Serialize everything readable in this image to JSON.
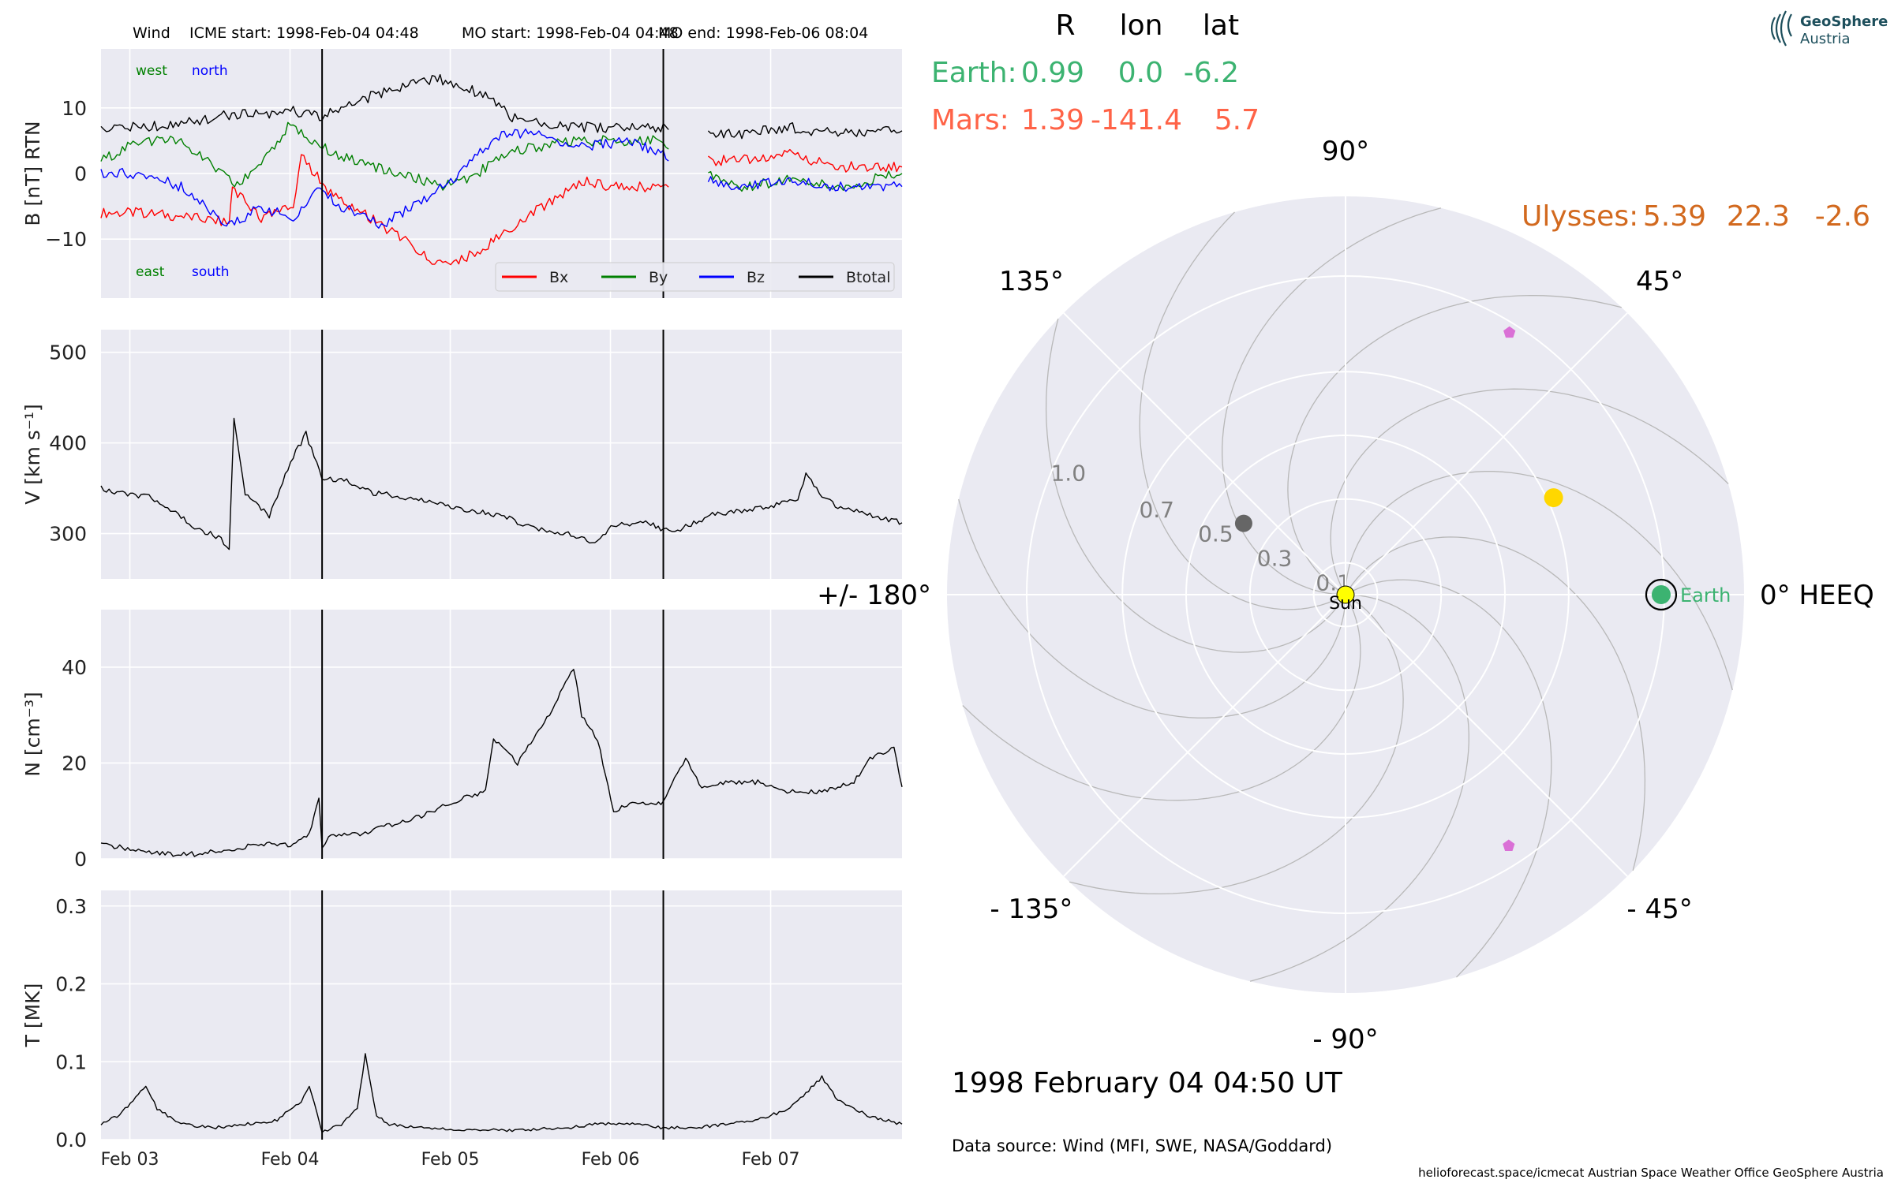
{
  "header": {
    "spacecraft": "Wind",
    "icme_start": "ICME start: 1998-Feb-04 04:48",
    "mo_start": "MO start: 1998-Feb-04 04:48",
    "mo_end": "MO end: 1998-Feb-06 08:04"
  },
  "logo": {
    "line1": "GeoSphere",
    "line2": "Austria",
    "icon": "geosphere-logo-icon"
  },
  "colors": {
    "panel_bg": "#eaeaf2",
    "grid": "#ffffff",
    "bx": "#ff0000",
    "by": "#008000",
    "bz": "#0000ff",
    "btotal": "#000000",
    "earth": "#3cb371",
    "mars": "#ff6347",
    "ulysses": "#d2691e",
    "sun": "#ffff00",
    "comet_like": "#666666",
    "planet_gold": "#ffd700",
    "pentagon": "#da70d6"
  },
  "footer": {
    "datetime": "1998 February 04  04:50 UT",
    "source": "Data source: Wind (MFI, SWE, NASA/Goddard)",
    "credits": "helioforecast.space/icmecat   Austrian Space Weather Office   GeoSphere Austria"
  },
  "position_table": {
    "headers": [
      "R",
      "lon",
      "lat"
    ],
    "rows": [
      {
        "label": "Earth:",
        "values": [
          "0.99",
          "0.0",
          "-6.2"
        ],
        "color": "#3cb371"
      },
      {
        "label": "Mars:",
        "values": [
          "1.39",
          "-141.4",
          "5.7"
        ],
        "color": "#ff6347"
      }
    ],
    "ulysses": {
      "label": "Ulysses:",
      "values": [
        "5.39",
        "22.3",
        "-2.6"
      ],
      "color": "#d2691e"
    }
  },
  "chart_data": [
    {
      "type": "line",
      "panel": "magnetic field",
      "ylabel": "B [nT] RTN",
      "ylim": [
        -19,
        19
      ],
      "yticks": [
        10,
        0,
        -10
      ],
      "ytick_labels": [
        "10",
        "0",
        "−10"
      ],
      "xlim": [
        0,
        5
      ],
      "x_ticks": [
        0.18,
        1.18,
        2.18,
        3.18,
        4.18
      ],
      "x_tick_labels": [
        "Feb 03",
        "Feb 04",
        "Feb 05",
        "Feb 06",
        "Feb 07"
      ],
      "x_start": "1998-02-02 19:40",
      "vlines": [
        1.38,
        3.51
      ],
      "corner_labels": {
        "top_left": "west",
        "top_right": "north",
        "bottom_left": "east",
        "bottom_right": "south"
      },
      "gap": [
        3.55,
        3.79
      ],
      "series": [
        {
          "name": "Bx",
          "color": "#ff0000",
          "x": [
            0,
            0.25,
            0.5,
            0.8,
            0.82,
            1.0,
            1.2,
            1.25,
            1.45,
            1.7,
            2.0,
            2.1,
            2.2,
            2.4,
            2.7,
            3.0,
            3.2,
            3.51,
            3.79,
            4.0,
            4.3,
            4.6,
            5.0
          ],
          "y": [
            -6,
            -6,
            -6.5,
            -7.5,
            -2,
            -7,
            -5,
            2.5,
            -3.5,
            -7,
            -12,
            -14,
            -14,
            -11,
            -6,
            -1,
            -2,
            -2,
            2,
            2,
            3,
            1,
            1
          ]
        },
        {
          "name": "By",
          "color": "#008000",
          "x": [
            0,
            0.25,
            0.5,
            0.85,
            1.0,
            1.2,
            1.25,
            1.45,
            1.7,
            2.0,
            2.1,
            2.3,
            2.5,
            2.7,
            3.0,
            3.3,
            3.51,
            3.79,
            4.0,
            4.3,
            4.6,
            5.0
          ],
          "y": [
            2,
            5,
            5,
            -2,
            2,
            8,
            6,
            3,
            1,
            -1,
            -2,
            -1,
            3,
            4,
            5,
            5,
            5,
            0,
            -2,
            -1,
            -2,
            0
          ]
        },
        {
          "name": "Bz",
          "color": "#0000ff",
          "x": [
            0,
            0.25,
            0.5,
            0.8,
            1.0,
            1.2,
            1.35,
            1.5,
            1.75,
            2.0,
            2.2,
            2.4,
            2.5,
            2.7,
            3.0,
            3.3,
            3.51,
            3.79,
            4.0,
            4.3,
            4.6,
            5.0
          ],
          "y": [
            0,
            0,
            -2,
            -8,
            -5,
            -7,
            -2,
            -5,
            -8,
            -4,
            -1,
            4,
            6,
            6,
            4,
            5,
            3,
            -1,
            -2,
            -1,
            -2,
            -2
          ]
        },
        {
          "name": "Btotal",
          "color": "#000000",
          "x": [
            0,
            0.25,
            0.5,
            0.8,
            1.0,
            1.2,
            1.25,
            1.38,
            1.6,
            1.9,
            2.1,
            2.4,
            2.6,
            3.0,
            3.3,
            3.51,
            3.79,
            4.0,
            4.3,
            4.6,
            5.0
          ],
          "y": [
            7,
            7,
            7.5,
            9,
            9,
            10,
            9,
            8.8,
            11,
            13.5,
            14.5,
            12,
            8,
            7,
            7,
            7,
            6,
            6,
            7,
            6,
            6.5
          ]
        }
      ]
    },
    {
      "type": "line",
      "panel": "speed",
      "ylabel": "V [km s⁻¹]",
      "ylim": [
        250,
        525
      ],
      "yticks": [
        500,
        400,
        300
      ],
      "ytick_labels": [
        "500",
        "400",
        "300"
      ],
      "xlim": [
        0,
        5
      ],
      "vlines": [
        1.38,
        3.51
      ],
      "series": [
        {
          "name": "",
          "color": "#000000",
          "x": [
            0,
            0.1,
            0.3,
            0.45,
            0.6,
            0.75,
            0.8,
            0.83,
            0.9,
            1.05,
            1.15,
            1.2,
            1.28,
            1.38,
            1.5,
            1.7,
            1.9,
            2.1,
            2.3,
            2.5,
            2.7,
            2.9,
            3.1,
            3.2,
            3.4,
            3.51,
            3.6,
            3.8,
            4.0,
            4.2,
            4.35,
            4.4,
            4.5,
            4.6,
            4.8,
            5.0
          ],
          "y": [
            350,
            345,
            340,
            325,
            305,
            295,
            280,
            425,
            345,
            320,
            365,
            385,
            410,
            360,
            360,
            345,
            340,
            335,
            325,
            320,
            305,
            300,
            290,
            310,
            312,
            305,
            303,
            320,
            325,
            330,
            340,
            365,
            340,
            330,
            320,
            312
          ]
        }
      ]
    },
    {
      "type": "line",
      "panel": "density",
      "ylabel": "N [cm⁻³]",
      "ylim": [
        0,
        52
      ],
      "yticks": [
        40,
        20,
        0
      ],
      "ytick_labels": [
        "40",
        "20",
        "0"
      ],
      "xlim": [
        0,
        5
      ],
      "vlines": [
        1.38,
        3.51
      ],
      "series": [
        {
          "name": "",
          "color": "#000000",
          "x": [
            0,
            0.2,
            0.4,
            0.6,
            0.8,
            1.0,
            1.2,
            1.3,
            1.36,
            1.38,
            1.42,
            1.6,
            1.8,
            2.0,
            2.2,
            2.4,
            2.45,
            2.6,
            2.8,
            2.95,
            3.0,
            3.1,
            3.2,
            3.35,
            3.45,
            3.51,
            3.65,
            3.75,
            3.9,
            4.1,
            4.3,
            4.5,
            4.7,
            4.8,
            4.95,
            5.0
          ],
          "y": [
            3,
            2,
            1,
            1,
            2,
            3,
            3,
            5,
            13,
            2,
            5,
            5,
            7,
            9,
            12,
            14,
            25,
            20,
            30,
            40,
            30,
            25,
            10,
            12,
            11,
            12,
            21,
            15,
            16,
            16,
            14,
            14,
            16,
            21,
            23,
            15
          ]
        }
      ]
    },
    {
      "type": "line",
      "panel": "temperature",
      "ylabel": "T [MK]",
      "ylim": [
        0,
        0.32
      ],
      "yticks": [
        0.3,
        0.2,
        0.1,
        0.0
      ],
      "ytick_labels": [
        "0.3",
        "0.2",
        "0.1",
        "0.0"
      ],
      "xlim": [
        0,
        5
      ],
      "vlines": [
        1.38,
        3.51
      ],
      "series": [
        {
          "name": "",
          "color": "#000000",
          "x": [
            0,
            0.1,
            0.2,
            0.28,
            0.35,
            0.5,
            0.7,
            0.9,
            1.1,
            1.25,
            1.3,
            1.38,
            1.5,
            1.6,
            1.65,
            1.72,
            1.8,
            2.0,
            2.3,
            2.6,
            2.9,
            3.1,
            3.3,
            3.51,
            3.7,
            3.9,
            4.1,
            4.3,
            4.4,
            4.5,
            4.6,
            4.8,
            5.0
          ],
          "y": [
            0.02,
            0.03,
            0.05,
            0.07,
            0.04,
            0.02,
            0.015,
            0.02,
            0.025,
            0.05,
            0.07,
            0.01,
            0.02,
            0.04,
            0.11,
            0.03,
            0.02,
            0.015,
            0.012,
            0.012,
            0.015,
            0.02,
            0.02,
            0.015,
            0.015,
            0.02,
            0.025,
            0.04,
            0.06,
            0.08,
            0.05,
            0.03,
            0.02
          ]
        }
      ]
    },
    {
      "type": "scatter",
      "panel": "polar position plot",
      "projection": "polar",
      "r_ticks": [
        0.1,
        0.3,
        0.5,
        0.7,
        1.0
      ],
      "r_tick_labels": [
        "0.1",
        "0.3",
        "0.5",
        "0.7",
        "1.0"
      ],
      "angle_labels": [
        {
          "deg": 90,
          "text": "90°"
        },
        {
          "deg": 45,
          "text": "45°"
        },
        {
          "deg": 0,
          "text": "0° HEEQ"
        },
        {
          "deg": -45,
          "text": "- 45°"
        },
        {
          "deg": -90,
          "text": "- 90°"
        },
        {
          "deg": -135,
          "text": "- 135°"
        },
        {
          "deg": 180,
          "text": "+/- 180°"
        },
        {
          "deg": 135,
          "text": "135°"
        }
      ],
      "points": [
        {
          "name": "Sun",
          "label": "Sun",
          "r": 0.0,
          "lon": 0,
          "color": "#ffff00",
          "size": 11
        },
        {
          "name": "Earth",
          "label": "Earth",
          "r": 0.99,
          "lon": 0,
          "color": "#3cb371",
          "size": 12,
          "ring": true
        },
        {
          "name": "inner-planet-gold",
          "label": "",
          "r": 0.72,
          "lon": 25,
          "color": "#ffd700",
          "size": 12
        },
        {
          "name": "inner-planet-gray",
          "label": "",
          "r": 0.39,
          "lon": 145,
          "color": "#666666",
          "size": 11
        },
        {
          "name": "pentagon-top",
          "label": "",
          "r": 0.97,
          "lon": 58,
          "color": "#da70d6",
          "size": 8,
          "marker": "pentagon"
        },
        {
          "name": "pentagon-bottom",
          "label": "",
          "r": 0.94,
          "lon": -57,
          "color": "#da70d6",
          "size": 8,
          "marker": "pentagon"
        }
      ]
    }
  ]
}
